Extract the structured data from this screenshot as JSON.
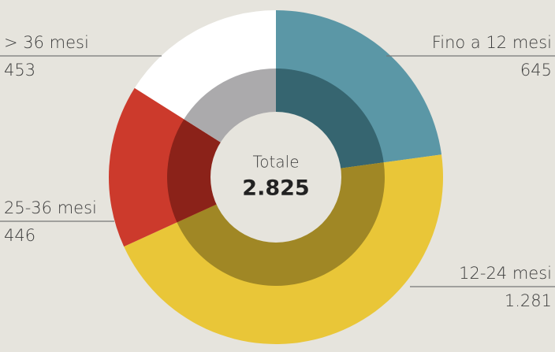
{
  "chart_data": {
    "type": "donut",
    "categories": [
      "Fino a 12 mesi",
      "12-24 mesi",
      "25-36 mesi",
      "> 36 mesi"
    ],
    "values": [
      645,
      1281,
      446,
      453
    ],
    "value_labels": [
      "645",
      "1.281",
      "446",
      "453"
    ],
    "colors": [
      "#5b97a6",
      "#e9c638",
      "#cc3a2c",
      "#ffffff"
    ],
    "inner_colors": [
      "#366570",
      "#a08725",
      "#8b2219",
      "#abaaac"
    ],
    "center_label": "Totale",
    "center_value": "2.825"
  }
}
